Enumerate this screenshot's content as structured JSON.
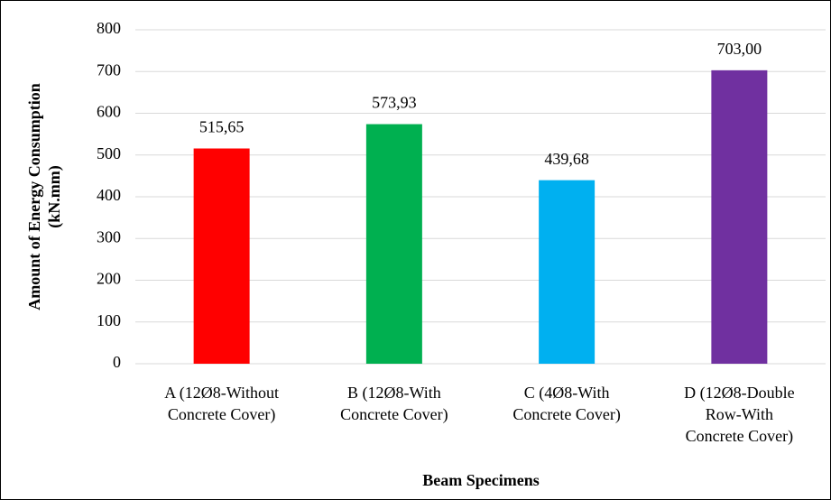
{
  "chart_data": {
    "type": "bar",
    "ylabel": [
      "Amount of Energy Consumption",
      "(kN.mm)"
    ],
    "xlabel": "Beam Specimens",
    "categories": [
      [
        "A (12Ø8-Without",
        "Concrete Cover)"
      ],
      [
        "B (12Ø8-With",
        "Concrete Cover)"
      ],
      [
        "C (4Ø8-With",
        "Concrete Cover)"
      ],
      [
        "D (12Ø8-Double",
        "Row-With",
        "Concrete Cover)"
      ]
    ],
    "values": [
      515.65,
      573.93,
      439.68,
      703.0
    ],
    "value_labels": [
      "515,65",
      "573,93",
      "439,68",
      "703,00"
    ],
    "colors": [
      "#ff0000",
      "#00b050",
      "#00b0f0",
      "#7030a0"
    ],
    "ylim": [
      0,
      800
    ],
    "yticks": [
      0,
      100,
      200,
      300,
      400,
      500,
      600,
      700,
      800
    ],
    "grid": true
  }
}
